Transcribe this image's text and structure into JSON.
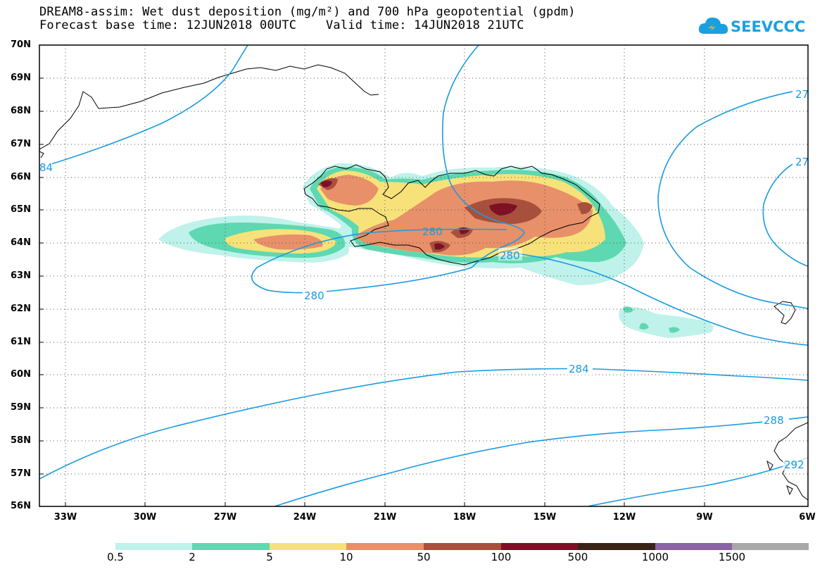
{
  "title": {
    "line1": "DREAM8-assim: Wet dust deposition (mg/m²) and 700 hPa geopotential (gpdm)",
    "line2": "Forecast base time: 12JUN2018 00UTC    Valid time: 14JUN2018 21UTC"
  },
  "logo": {
    "text": "SEEVCCC",
    "icon": "cloud-icon",
    "color": "#1aa0e0"
  },
  "map": {
    "lat_range": [
      56,
      70
    ],
    "lon_range": [
      -34.5,
      -6
    ],
    "lat_ticks": [
      "70N",
      "69N",
      "68N",
      "67N",
      "66N",
      "65N",
      "64N",
      "63N",
      "62N",
      "61N",
      "60N",
      "59N",
      "58N",
      "57N",
      "56N"
    ],
    "lon_ticks": [
      "33W",
      "30W",
      "27W",
      "24W",
      "21W",
      "18W",
      "15W",
      "12W",
      "9W",
      "6W"
    ],
    "contour_color": "#1a9be0",
    "contour_labels": [
      {
        "text": "280"
      },
      {
        "text": "280"
      },
      {
        "text": "280"
      },
      {
        "text": "284"
      },
      {
        "text": "288"
      },
      {
        "text": "27"
      },
      {
        "text": "27"
      },
      {
        "text": "84"
      },
      {
        "text": "292"
      }
    ]
  },
  "colorbar": {
    "labels": [
      "0.5",
      "2",
      "5",
      "10",
      "50",
      "100",
      "500",
      "1000",
      "1500"
    ],
    "colors": [
      "#bff2ea",
      "#5ed8b0",
      "#f7e27a",
      "#e8906a",
      "#a8503c",
      "#7d1024",
      "#3a2418",
      "#8a64a6",
      "#a8a8a8"
    ]
  }
}
